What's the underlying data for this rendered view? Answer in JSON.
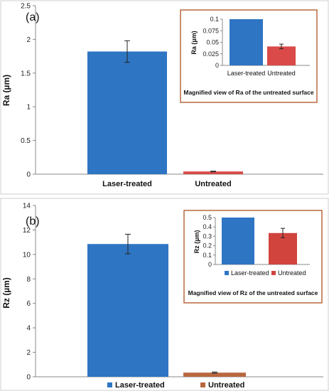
{
  "colors": {
    "laser": "#2E75C3",
    "untreated_a": "#D94A48",
    "untreated_b": "#B8683E",
    "inset_untreated_a": "#D94A48",
    "inset_untreated_b": "#D1443E",
    "frame": "#B8683E",
    "axis": "#888888"
  },
  "chart_data": [
    {
      "type": "bar",
      "panel_label": "(a)",
      "ylabel": "Ra (µm)",
      "ylim": [
        0,
        2.5
      ],
      "yticks": [
        "0",
        "0.5",
        "1",
        "1.5",
        "2",
        "2.5"
      ],
      "categories": [
        "Laser-treated",
        "Untreated"
      ],
      "values": [
        1.82,
        0.04
      ],
      "errors": [
        0.16,
        0.005
      ],
      "legend": "none (category labels)",
      "inset": {
        "type": "bar",
        "ylabel": "Ra (µm)",
        "ylim": [
          0,
          0.1
        ],
        "yticks": [
          "0",
          "0.025",
          "0.05",
          "0.075",
          "0.1"
        ],
        "categories": [
          "Laser-treated",
          "Untreated"
        ],
        "values": [
          0.1,
          0.041
        ],
        "errors": [
          0,
          0.005
        ],
        "caption": "Magnified view of Ra of the untreated surface"
      }
    },
    {
      "type": "bar",
      "panel_label": "(b)",
      "ylabel": "Rz (µm)",
      "ylim": [
        0,
        14
      ],
      "yticks": [
        "0",
        "2",
        "4",
        "6",
        "8",
        "10",
        "12",
        "14"
      ],
      "categories": [
        "Laser-treated",
        "Untreated"
      ],
      "values": [
        10.85,
        0.34
      ],
      "errors": [
        0.8,
        0.05
      ],
      "legend": "bottom",
      "inset": {
        "type": "bar",
        "ylabel": "Rz (µm)",
        "ylim": [
          0,
          0.5
        ],
        "yticks": [
          "0",
          "0.1",
          "0.2",
          "0.3",
          "0.4",
          "0.5"
        ],
        "categories": [
          "Laser-treated",
          "Untreated"
        ],
        "values": [
          0.5,
          0.335
        ],
        "errors": [
          0,
          0.05
        ],
        "legend": "bottom",
        "caption": "Magnified view of Rz of the untreated surface"
      }
    }
  ]
}
